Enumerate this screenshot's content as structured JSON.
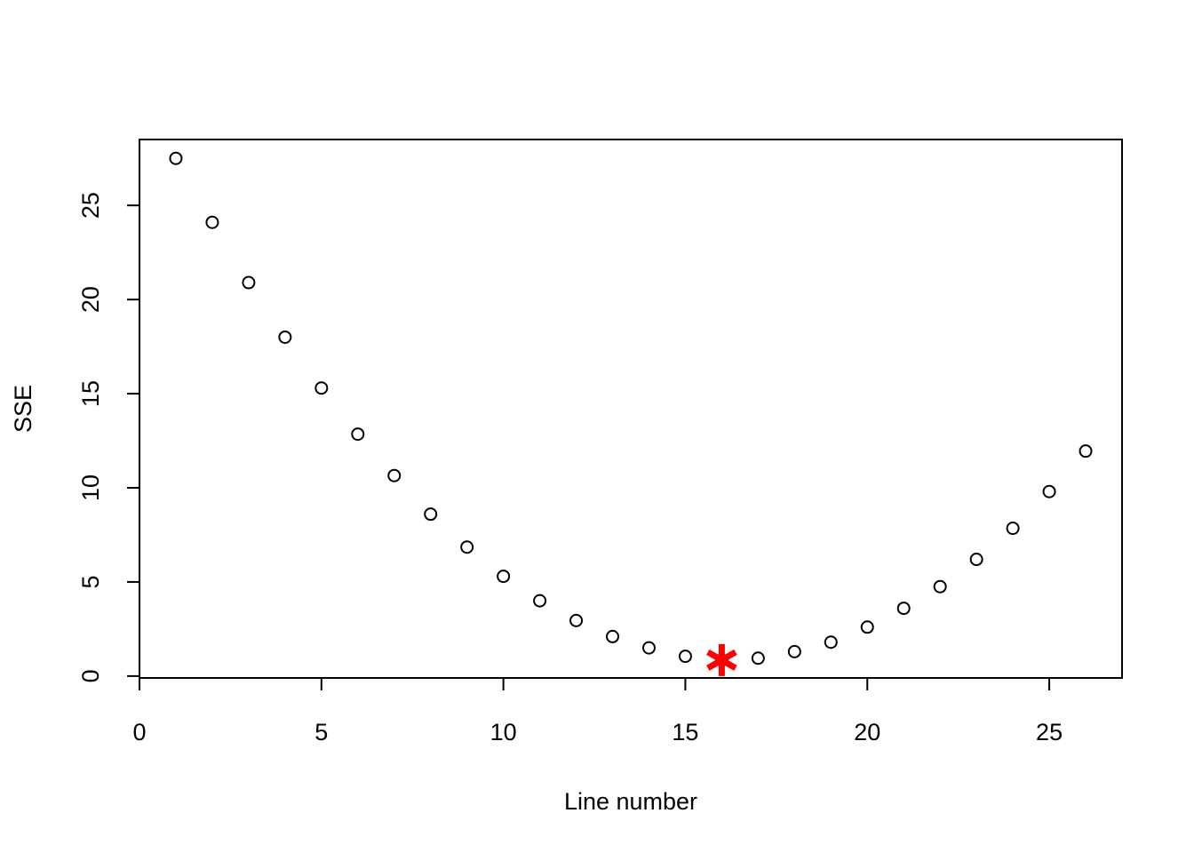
{
  "chart_data": {
    "type": "scatter",
    "xlabel": "Line number",
    "ylabel": "SSE",
    "xlim": [
      0,
      27
    ],
    "ylim": [
      -0.1,
      28.5
    ],
    "xticks": [
      0,
      5,
      10,
      15,
      20,
      25
    ],
    "yticks": [
      0,
      5,
      10,
      15,
      20,
      25
    ],
    "grid": false,
    "series": [
      {
        "marker": "open-circle",
        "color": "#000000",
        "x": [
          1,
          2,
          3,
          4,
          5,
          6,
          7,
          8,
          9,
          10,
          11,
          12,
          13,
          14,
          15,
          16,
          17,
          18,
          19,
          20,
          21,
          22,
          23,
          24,
          25,
          26
        ],
        "y": [
          27.5,
          24.1,
          20.9,
          18.0,
          15.3,
          12.85,
          10.65,
          8.6,
          6.85,
          5.3,
          4.0,
          2.95,
          2.1,
          1.5,
          1.05,
          0.85,
          0.95,
          1.3,
          1.8,
          2.6,
          3.6,
          4.75,
          6.2,
          7.85,
          9.8,
          11.95
        ]
      }
    ],
    "highlight": {
      "marker": "asterisk",
      "color": "#ff0000",
      "x": 16,
      "y": 0.85
    }
  }
}
